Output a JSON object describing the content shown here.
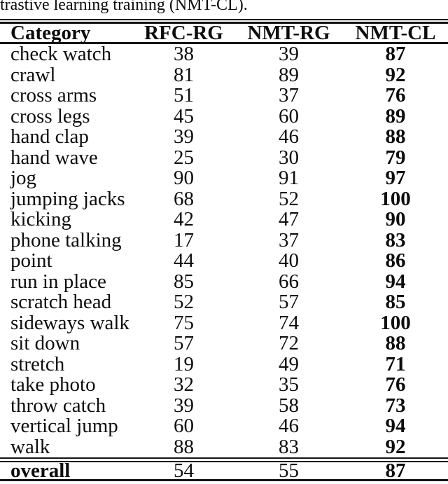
{
  "caption": "trastive learning training (NMT-CL).",
  "table": {
    "columns": [
      "Category",
      "RFC-RG",
      "NMT-RG",
      "NMT-CL"
    ],
    "bold_column": "nmt_cl",
    "rows": [
      {
        "category": "check watch",
        "rfc_rg": 38,
        "nmt_rg": 39,
        "nmt_cl": 87
      },
      {
        "category": "crawl",
        "rfc_rg": 81,
        "nmt_rg": 89,
        "nmt_cl": 92
      },
      {
        "category": "cross arms",
        "rfc_rg": 51,
        "nmt_rg": 37,
        "nmt_cl": 76
      },
      {
        "category": "cross legs",
        "rfc_rg": 45,
        "nmt_rg": 60,
        "nmt_cl": 89
      },
      {
        "category": "hand clap",
        "rfc_rg": 39,
        "nmt_rg": 46,
        "nmt_cl": 88
      },
      {
        "category": "hand wave",
        "rfc_rg": 25,
        "nmt_rg": 30,
        "nmt_cl": 79
      },
      {
        "category": "jog",
        "rfc_rg": 90,
        "nmt_rg": 91,
        "nmt_cl": 97
      },
      {
        "category": "jumping jacks",
        "rfc_rg": 68,
        "nmt_rg": 52,
        "nmt_cl": 100
      },
      {
        "category": "kicking",
        "rfc_rg": 42,
        "nmt_rg": 47,
        "nmt_cl": 90
      },
      {
        "category": "phone talking",
        "rfc_rg": 17,
        "nmt_rg": 37,
        "nmt_cl": 83
      },
      {
        "category": "point",
        "rfc_rg": 44,
        "nmt_rg": 40,
        "nmt_cl": 86
      },
      {
        "category": "run in place",
        "rfc_rg": 85,
        "nmt_rg": 66,
        "nmt_cl": 94
      },
      {
        "category": "scratch head",
        "rfc_rg": 52,
        "nmt_rg": 57,
        "nmt_cl": 85
      },
      {
        "category": "sideways walk",
        "rfc_rg": 75,
        "nmt_rg": 74,
        "nmt_cl": 100
      },
      {
        "category": "sit down",
        "rfc_rg": 57,
        "nmt_rg": 72,
        "nmt_cl": 88
      },
      {
        "category": "stretch",
        "rfc_rg": 19,
        "nmt_rg": 49,
        "nmt_cl": 71
      },
      {
        "category": "take photo",
        "rfc_rg": 32,
        "nmt_rg": 35,
        "nmt_cl": 76
      },
      {
        "category": "throw catch",
        "rfc_rg": 39,
        "nmt_rg": 58,
        "nmt_cl": 73
      },
      {
        "category": "vertical jump",
        "rfc_rg": 60,
        "nmt_rg": 46,
        "nmt_cl": 94
      },
      {
        "category": "walk",
        "rfc_rg": 88,
        "nmt_rg": 83,
        "nmt_cl": 92
      }
    ],
    "overall": {
      "category": "overall",
      "rfc_rg": 54,
      "nmt_rg": 55,
      "nmt_cl": 87
    }
  },
  "colors": {
    "text": "#0d0d0d",
    "rule": "#141414",
    "background": "#ffffff"
  }
}
